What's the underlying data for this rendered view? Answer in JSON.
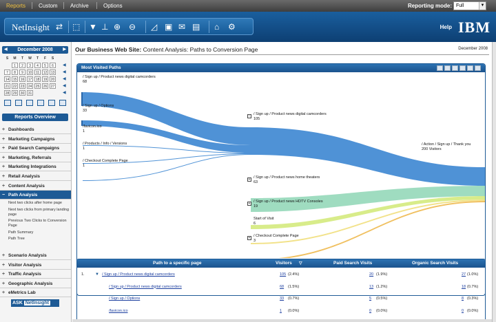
{
  "topnav": {
    "items": [
      {
        "label": "Reports",
        "active": true
      },
      {
        "label": "Custom"
      },
      {
        "label": "Archive"
      },
      {
        "label": "Options"
      }
    ],
    "mode_label": "Reporting mode:",
    "mode_value": "Full"
  },
  "banner": {
    "logo": "NetInsight",
    "help": "Help",
    "brand": "IBM"
  },
  "calendar": {
    "month": "December 2008",
    "days": [
      "S",
      "M",
      "T",
      "W",
      "T",
      "F",
      "S"
    ],
    "weeks": [
      [
        "",
        "1",
        "2",
        "3",
        "4",
        "5",
        "6"
      ],
      [
        "7",
        "8",
        "9",
        "10",
        "11",
        "12",
        "13"
      ],
      [
        "14",
        "15",
        "16",
        "17",
        "18",
        "19",
        "20"
      ],
      [
        "21",
        "22",
        "23",
        "24",
        "25",
        "26",
        "27"
      ],
      [
        "28",
        "29",
        "30",
        "31",
        "",
        "",
        ""
      ]
    ]
  },
  "sidebar": {
    "overview": "Reports Overview",
    "sections_top": [
      "Dashboards",
      "Marketing Campaigns",
      "Paid Search Campaigns",
      "Marketing, Referrals",
      "Marketing Integrations",
      "Retail Analysis",
      "Content Analysis"
    ],
    "active": "Path Analysis",
    "subitems": [
      "Next two clicks after home page",
      "Next two clicks from primary landing page",
      "Previous Two Clicks to Conversion Page",
      "Path Summary",
      "Path Tree"
    ],
    "sections_bottom": [
      "Scenario Analysis",
      "Visitor Analysis",
      "Traffic Analysis",
      "Geographic Analysis",
      "eMetrics Lab"
    ],
    "ask_a": "ASK",
    "ask_b": "NetInsight"
  },
  "page": {
    "title_bold": "Our Business Web Site:",
    "title_rest": "Content Analysis: Paths to Conversion Page",
    "date": "December 2008"
  },
  "panel": {
    "title": "Most Visited Paths"
  },
  "sankey_nodes": {
    "left": [
      {
        "label": "/ Sign up / Product news digital camcorders",
        "value": "68"
      },
      {
        "label": "/ Sign up / Options",
        "value": "33"
      },
      {
        "label": "/favicon.ico",
        "value": "1"
      },
      {
        "label": "/ Products / Info / Versions",
        "value": "1"
      },
      {
        "label": "/ Checkout Complete Page",
        "value": "1"
      }
    ],
    "middle": [
      {
        "label": "/ Sign up / Product news digital camcorders",
        "value": "105"
      },
      {
        "label": "/ Sign up / Product news home theaters",
        "value": "63"
      },
      {
        "label": "/ Sign up / Product news HDTV Consoles",
        "value": "19"
      },
      {
        "label": "Start of Visit",
        "value": "6"
      },
      {
        "label": "/ Checkout Complete Page",
        "value": "3"
      }
    ],
    "right": {
      "label": "/ Action / Sign up / Thank you",
      "value": "200 Visitors"
    }
  },
  "table": {
    "headers": [
      "Path to a specific page",
      "Visitors",
      "Paid Search Visits",
      "Organic Search Visits"
    ],
    "rows": [
      {
        "num": "1.",
        "path": "/ Sign up / Product news digital camcorders",
        "v": "105",
        "vp": "(2.4%)",
        "p": "20",
        "pp": "(1.9%)",
        "o": "27",
        "op": "(1.0%)"
      },
      {
        "num": "",
        "path": "/ Sign up / Product news digital camcorders",
        "v": "68",
        "vp": "(1.5%)",
        "p": "13",
        "pp": "(1.2%)",
        "o": "18",
        "op": "(0.7%)"
      },
      {
        "num": "",
        "path": "/ Sign up / Options",
        "v": "33",
        "vp": "(0.7%)",
        "p": "5",
        "pp": "(0.5%)",
        "o": "8",
        "op": "(0.3%)"
      },
      {
        "num": "",
        "path": "/favicon.ico",
        "v": "1",
        "vp": "(0.0%)",
        "p": "0",
        "pp": "(0.0%)",
        "o": "0",
        "op": "(0.0%)"
      }
    ]
  },
  "colors": {
    "nav_blue": "#1d5a95",
    "flow_blue": "#4f92d6",
    "flow_green": "#9fdcc0",
    "flow_lime": "#d8ec8a",
    "flow_yellow": "#f2e28a",
    "flow_orange": "#f0c060"
  }
}
